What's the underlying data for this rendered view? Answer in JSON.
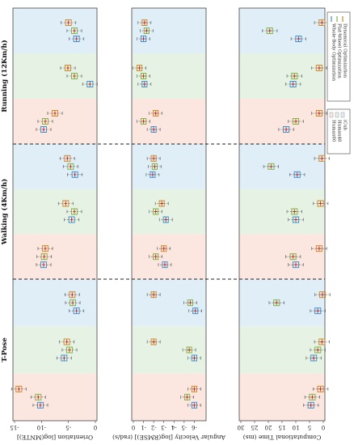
{
  "chart_data": {
    "type": "box",
    "orientation": "rotated",
    "groups": [
      {
        "name": "T-Pose",
        "label": "T-Pose"
      },
      {
        "name": "Walking",
        "label": "Walking (4Km/h)"
      },
      {
        "name": "Running",
        "label": "Running (12Km/h)"
      }
    ],
    "datasets": [
      "Human60",
      "Human48",
      "iCub"
    ],
    "methods": [
      {
        "name": "Whole-Body Optimization",
        "color": "#4a90c8"
      },
      {
        "name": "Flat-Wheel Optimization",
        "color": "#8ab04a"
      },
      {
        "name": "Dynamical Optimization",
        "color": "#d08a30"
      }
    ],
    "legend": {
      "methods": [
        "Whole-Body Optimization",
        "Flat-Wheel Optimization",
        "Dynamical Optimization"
      ],
      "datasets": [
        "Human60",
        "Human48",
        "iCub"
      ],
      "background_colors": {
        "Human60": "#fbe6e0",
        "Human48": "#e6f2e4",
        "iCub": "#e0eef8"
      }
    },
    "panels": [
      {
        "id": "orientation",
        "ylabel": "Orientation [log(MNTE)]",
        "ylim": [
          -15,
          0
        ],
        "ticks": [
          0,
          -5,
          -10,
          -15
        ],
        "tick_labels": [
          "0",
          "-5",
          "-10",
          "-15"
        ],
        "median": [
          [
            [
              -10.2,
              -10.6,
              -14.2
            ],
            [
              -5.8,
              -4.8,
              -5.3
            ],
            [
              -3.5,
              -4.2,
              -4.3
            ]
          ],
          [
            [
              -9.6,
              -9.5,
              -9.3
            ],
            [
              -4.4,
              -3.9,
              -5.5
            ],
            [
              -3.8,
              -4.6,
              -5.2
            ]
          ],
          [
            [
              -9.6,
              -9.3,
              -7.5
            ],
            [
              -1.0,
              -3.9,
              -5.1
            ],
            [
              -3.5,
              -3.9,
              -5.0
            ]
          ]
        ],
        "means": [
          [
            [
              -10.2,
              -10.6,
              -14.2
            ],
            [
              -5.8,
              -4.8,
              -5.3
            ],
            [
              -3.5,
              -4.2,
              -4.3
            ]
          ],
          [
            [
              -9.6,
              -9.5,
              -9.3
            ],
            [
              -4.4,
              -3.9,
              -5.5
            ],
            [
              -3.8,
              -4.6,
              -5.2
            ]
          ],
          [
            [
              -9.6,
              -9.3,
              -7.5
            ],
            [
              -1.0,
              -3.9,
              -5.1
            ],
            [
              -3.5,
              -3.9,
              -5.0
            ]
          ]
        ]
      },
      {
        "id": "angvel",
        "ylabel": "Angular Velocity [log(RMSE)] (rad/s)",
        "ylim": [
          0,
          -7
        ],
        "ticks": [
          0,
          -1,
          -2,
          -3,
          -4,
          -5,
          -6
        ],
        "tick_labels": [
          "0",
          "-1",
          "-2",
          "-3",
          "-4",
          "-5",
          "-6"
        ],
        "median": [
          [
            [
              -6.0,
              -5.3,
              -6.0
            ],
            [
              -6.0,
              -5.5,
              -2.0
            ],
            [
              -6.1,
              -5.6,
              -2.0
            ]
          ],
          [
            [
              -3.1,
              -2.2,
              -3.0
            ],
            [
              -3.2,
              -2.2,
              -2.8
            ],
            [
              -1.9,
              -2.1,
              -2.0
            ]
          ],
          [
            [
              -2.0,
              -1.0,
              -2.2
            ],
            [
              -1.1,
              -1.0,
              -0.6
            ],
            [
              -1.0,
              -1.3,
              -1.1
            ]
          ]
        ],
        "means": [
          [
            [
              -6.0,
              -5.3,
              -6.0
            ],
            [
              -6.0,
              -5.5,
              -2.0
            ],
            [
              -6.1,
              -5.6,
              -2.0
            ]
          ],
          [
            [
              -3.1,
              -2.2,
              -3.0
            ],
            [
              -3.2,
              -2.2,
              -2.8
            ],
            [
              -1.9,
              -2.1,
              -2.0
            ]
          ],
          [
            [
              -2.0,
              -1.0,
              -2.2
            ],
            [
              -1.1,
              -1.0,
              -0.6
            ],
            [
              -1.0,
              -1.3,
              -1.1
            ]
          ]
        ]
      },
      {
        "id": "comptime",
        "ylabel": "Computational Time (ms)",
        "ylim": [
          30,
          0
        ],
        "ticks": [
          30,
          25,
          20,
          15,
          10,
          5,
          0
        ],
        "tick_labels": [
          "30",
          "25",
          "20",
          "15",
          "10",
          "5",
          "0"
        ],
        "median": [
          [
            [
              4.5,
              4.0,
              1.0
            ],
            [
              3.5,
              2.0,
              0.5
            ],
            [
              2.0,
              17.0,
              0.3
            ]
          ],
          [
            [
              10.0,
              11.0,
              1.5
            ],
            [
              10.0,
              10.5,
              1.0
            ],
            [
              9.5,
              19.0,
              0.5
            ]
          ],
          [
            [
              13.5,
              10.0,
              1.5
            ],
            [
              11.0,
              10.5,
              1.5
            ],
            [
              9.0,
              19.5,
              0.5
            ]
          ]
        ],
        "means": [
          [
            [
              4.5,
              4.0,
              1.0
            ],
            [
              3.5,
              2.0,
              0.5
            ],
            [
              2.0,
              17.0,
              0.3
            ]
          ],
          [
            [
              10.0,
              11.0,
              1.5
            ],
            [
              10.0,
              10.5,
              1.0
            ],
            [
              9.5,
              19.0,
              0.5
            ]
          ],
          [
            [
              13.5,
              10.0,
              1.5
            ],
            [
              11.0,
              10.5,
              1.5
            ],
            [
              9.0,
              19.5,
              0.5
            ]
          ]
        ]
      }
    ]
  }
}
